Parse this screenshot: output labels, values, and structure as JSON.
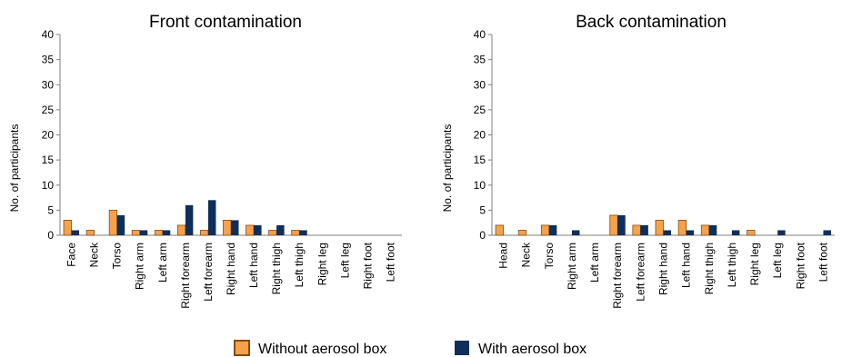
{
  "colors": {
    "without_fill": "#f5a24b",
    "without_stroke": "#8a4a12",
    "with_fill": "#0e2f5a",
    "axis": "#7f7f7f"
  },
  "legend": {
    "without_label": "Without aerosol box",
    "with_label": "With aerosol box"
  },
  "chart_data": [
    {
      "type": "bar",
      "title": "Front contamination",
      "ylabel": "No. of participants",
      "xlabel": "",
      "ylim": [
        0,
        40
      ],
      "yticks": [
        0,
        5,
        10,
        15,
        20,
        25,
        30,
        35,
        40
      ],
      "grid": false,
      "legend_position": "bottom",
      "categories": [
        "Face",
        "Neck",
        "Torso",
        "Right arm",
        "Left arm",
        "Right forearm",
        "Left forearm",
        "Right hand",
        "Left hand",
        "Right thigh",
        "Left thigh",
        "Right leg",
        "Left leg",
        "Right foot",
        "Left foot"
      ],
      "series": [
        {
          "name": "Without aerosol box",
          "values": [
            3,
            1,
            5,
            1,
            1,
            2,
            1,
            3,
            2,
            1,
            1,
            0,
            0,
            0,
            0
          ]
        },
        {
          "name": "With aerosol box",
          "values": [
            1,
            0,
            4,
            1,
            1,
            6,
            7,
            3,
            2,
            2,
            1,
            0,
            0,
            0,
            0
          ]
        }
      ]
    },
    {
      "type": "bar",
      "title": "Back contamination",
      "ylabel": "No. of participants",
      "xlabel": "",
      "ylim": [
        0,
        40
      ],
      "yticks": [
        0,
        5,
        10,
        15,
        20,
        25,
        30,
        35,
        40
      ],
      "grid": false,
      "legend_position": "bottom",
      "categories": [
        "Head",
        "Neck",
        "Torso",
        "Right arm",
        "Left arm",
        "Right forearm",
        "Left forearm",
        "Right hand",
        "Left hand",
        "Right thigh",
        "Left thigh",
        "Right leg",
        "Left leg",
        "Right foot",
        "Left foot"
      ],
      "series": [
        {
          "name": "Without aerosol box",
          "values": [
            2,
            1,
            2,
            0,
            0,
            4,
            2,
            3,
            3,
            2,
            0,
            1,
            0,
            0,
            0
          ]
        },
        {
          "name": "With aerosol box",
          "values": [
            0,
            0,
            2,
            1,
            0,
            4,
            2,
            1,
            1,
            2,
            1,
            0,
            1,
            0,
            1
          ]
        }
      ]
    }
  ]
}
